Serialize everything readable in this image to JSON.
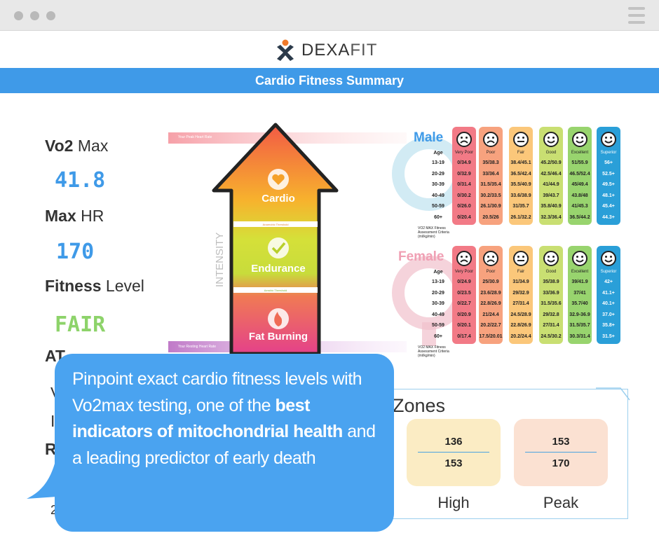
{
  "window": {
    "titlebar_dots": 3
  },
  "logo": {
    "brand_1": "DEXA",
    "brand_2": "FIT"
  },
  "header": {
    "title": "Cardio Fitness Summary"
  },
  "stats": {
    "vo2_bold": "Vo2",
    "vo2_rest": " Max",
    "vo2_value": "41.8",
    "hr_bold": "Max",
    "hr_rest": " HR",
    "hr_value": "170",
    "fit_bold": "Fitness",
    "fit_rest": " Level",
    "fit_value": "FAIR",
    "at_label": "AT",
    "partial_1": "V",
    "partial_2": "I",
    "partial_3": "R",
    "partial_4": "2"
  },
  "pyramid": {
    "peak_hr": "Your Peak Heart Rate",
    "resting_hr": "Your Resting Heart Rate",
    "anaerobic": "Anaerobic Threshold",
    "aerobic": "Aerobic Threshold",
    "intensity": "INTENSITY",
    "zones": [
      "Cardio",
      "Endurance",
      "Fat Burning"
    ]
  },
  "table_headers": [
    "Very Poor",
    "Poor",
    "Fair",
    "Good",
    "Excellent",
    "Superior"
  ],
  "table_ages": [
    "13-19",
    "20-29",
    "30-39",
    "40-49",
    "50-59",
    "60+"
  ],
  "table_footnote": "VO2 MAX Fitness Assessment Criteria (ml/kg/min)",
  "age_label": "Age",
  "male": {
    "title": "Male",
    "rows": [
      [
        "0/34.9",
        "35/38.3",
        "38.4/45.1",
        "45.2/50.9",
        "51/55.9",
        "56+"
      ],
      [
        "0/32.9",
        "33/36.4",
        "36.5/42.4",
        "42.5/46.4",
        "46.5/52.4",
        "52.5+"
      ],
      [
        "0/31.4",
        "31.5/35.4",
        "35.5/40.9",
        "41/44.9",
        "45/49.4",
        "49.5+"
      ],
      [
        "0/30.2",
        "30.2/33.5",
        "33.6/38.9",
        "39/43.7",
        "43.8/48",
        "48.1+"
      ],
      [
        "0/26.0",
        "26.1/30.9",
        "31/35.7",
        "35.8/40.9",
        "41/45.3",
        "45.4+"
      ],
      [
        "0/20.4",
        "20.5/26",
        "26.1/32.2",
        "32.3/36.4",
        "36.5/44.2",
        "44.3+"
      ]
    ]
  },
  "female": {
    "title": "Female",
    "rows": [
      [
        "0/24.9",
        "25/30.9",
        "31/34.9",
        "35/38.9",
        "39/41.9",
        "42+"
      ],
      [
        "0/23.5",
        "23.6/28.9",
        "29/32.9",
        "33/36.9",
        "37/41",
        "41.1+"
      ],
      [
        "0/22.7",
        "22.8/26.9",
        "27/31.4",
        "31.5/35.6",
        "35.7/40",
        "40.1+"
      ],
      [
        "0/20.9",
        "21/24.4",
        "24.5/28.9",
        "29/32.8",
        "32.9-36.9",
        "37.0+"
      ],
      [
        "0/20.1",
        "20.2/22.7",
        "22.8/26.9",
        "27/31.4",
        "31.5/35.7",
        "35.8+"
      ],
      [
        "0/17.4",
        "17.5/20.01",
        "20.2/24.4",
        "24.5/30.2",
        "30.3/31.4",
        "31.5+"
      ]
    ]
  },
  "col_colors": [
    "#f27a86",
    "#f7a27e",
    "#fbc77a",
    "#c9df72",
    "#98d46e",
    "#2a9fd8"
  ],
  "zones": {
    "title": "Zones",
    "items": [
      {
        "top": "136",
        "bottom": "153",
        "label": "High",
        "color": "#fbecc4"
      },
      {
        "top": "153",
        "bottom": "170",
        "label": "Peak",
        "color": "#fbe1d2"
      }
    ]
  },
  "bubble": {
    "t1": "Pinpoint exact cardio fitness levels with Vo2max testing, one of the ",
    "b1": "best indicators of mitochondrial health",
    "t2": " and a leading predictor of early death"
  }
}
